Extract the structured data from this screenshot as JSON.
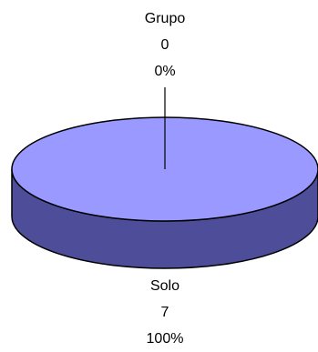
{
  "chart_data": {
    "type": "pie",
    "style": "3d",
    "slices": [
      {
        "category": "Grupo",
        "value": 0,
        "percent": "0%"
      },
      {
        "category": "Solo",
        "value": 7,
        "percent": "100%"
      }
    ],
    "colors": {
      "top": "#9999FF",
      "side": "#4D4D99",
      "outline": "#000000",
      "leader": "#000000"
    }
  }
}
